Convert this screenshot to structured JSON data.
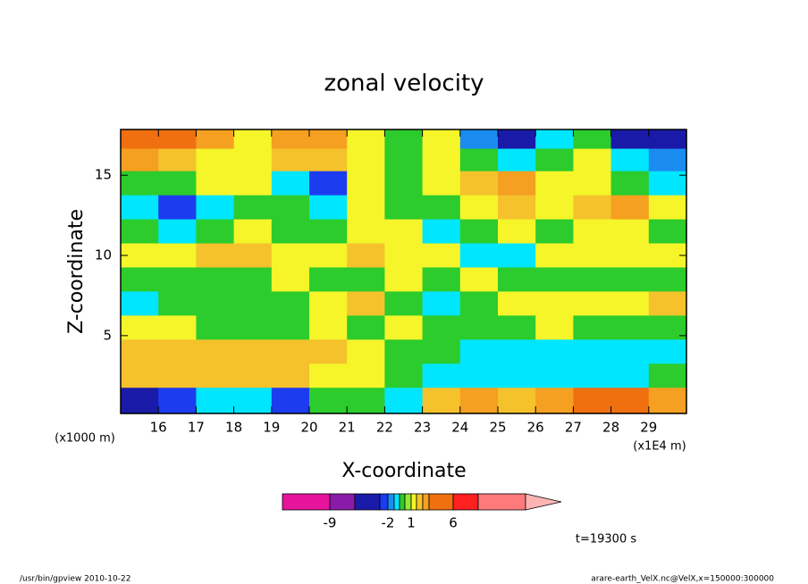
{
  "chart_data": {
    "type": "contour",
    "title": "zonal velocity",
    "xlabel": "X-coordinate",
    "ylabel": "Z-coordinate",
    "xunit": "(x1E4 m)",
    "yunit": "(x1000 m)",
    "annotation": "t=19300 s",
    "footer_left": "/usr/bin/gpview  2010-10-22",
    "footer_right": "arare-earth_VelX.nc@VelX,x=150000:300000",
    "xlim": [
      15,
      30
    ],
    "ylim": [
      0.15,
      17.85
    ],
    "xticks": [
      16,
      17,
      18,
      19,
      20,
      21,
      22,
      23,
      24,
      25,
      26,
      27,
      28,
      29
    ],
    "yticks": [
      5,
      10,
      15
    ],
    "x": [
      15.5,
      16.5,
      17.5,
      18.5,
      19.5,
      20.5,
      21.5,
      22.5,
      23.5,
      24.5,
      25.5,
      26.5,
      27.5,
      28.5,
      29.5
    ],
    "y": [
      17.3,
      16,
      14.5,
      13,
      11.5,
      10,
      8.5,
      7,
      5.5,
      4,
      2.5,
      1
    ],
    "z": [
      [
        5,
        5,
        3.5,
        1.5,
        3.5,
        3.5,
        1.5,
        0,
        1.5,
        -1.5,
        -4,
        -0.7,
        0,
        -4,
        -4
      ],
      [
        3.5,
        2.5,
        1.5,
        1.5,
        2.5,
        2.5,
        1.5,
        0,
        1.5,
        0,
        -0.7,
        0,
        1.5,
        -0.7,
        -1.5
      ],
      [
        0,
        0,
        1.5,
        1.5,
        -0.7,
        -2.5,
        1.5,
        0,
        1.5,
        2.5,
        3.5,
        1.5,
        1.5,
        0,
        -0.7
      ],
      [
        -0.7,
        -2.5,
        -0.7,
        0,
        0,
        -0.7,
        1.5,
        0,
        0,
        1.5,
        2.5,
        1.5,
        2.5,
        3.5,
        1.5
      ],
      [
        0,
        -0.7,
        0,
        1.5,
        0,
        0,
        1.5,
        1.5,
        -0.7,
        0,
        1.5,
        0,
        1.5,
        1.5,
        0
      ],
      [
        1.5,
        1.5,
        2.5,
        2.5,
        1.5,
        1.5,
        2.5,
        1.5,
        1.5,
        -0.7,
        -0.7,
        1.5,
        1.5,
        1.5,
        1.5
      ],
      [
        0,
        0,
        0,
        0,
        1.5,
        0,
        0,
        1.5,
        0,
        1.5,
        0,
        0,
        0,
        0,
        0
      ],
      [
        -0.7,
        0,
        0,
        0,
        0,
        1.5,
        2.5,
        0,
        -0.7,
        0,
        1.5,
        1.5,
        1.5,
        1.5,
        2.5
      ],
      [
        1.5,
        1.5,
        0,
        0,
        0,
        1.5,
        0,
        1.5,
        0,
        0,
        0,
        1.5,
        0,
        0,
        0
      ],
      [
        2.5,
        2.5,
        2.5,
        2.5,
        2.5,
        2.5,
        1.5,
        0,
        0,
        -0.7,
        -0.7,
        -0.7,
        -0.7,
        -0.7,
        -0.7
      ],
      [
        2.5,
        2.5,
        2.5,
        2.5,
        2.5,
        1.5,
        1.5,
        0,
        -0.7,
        -0.7,
        -0.7,
        -0.7,
        -0.7,
        -0.7,
        0
      ],
      [
        -4,
        -2.5,
        -0.7,
        -0.7,
        -2.5,
        0,
        0,
        -0.7,
        2.5,
        3.5,
        2.5,
        3.5,
        5,
        5,
        3.5
      ]
    ],
    "colorbar": {
      "levels": [
        -9,
        -6,
        -3,
        -2,
        -1,
        -0.5,
        0.5,
        1,
        2,
        3,
        4,
        6,
        9,
        15
      ],
      "colors": [
        "#e6139c",
        "#8a1aa8",
        "#1a1aa8",
        "#1c3cf0",
        "#1a8cf0",
        "#00e6ff",
        "#2ccc2c",
        "#99e633",
        "#f5f52a",
        "#f5c22c",
        "#f5a020",
        "#f07010",
        "#ff2020",
        "#ff7a7a",
        "#ffb4b4"
      ],
      "ticks": [
        -9,
        -2,
        1,
        6
      ]
    }
  }
}
